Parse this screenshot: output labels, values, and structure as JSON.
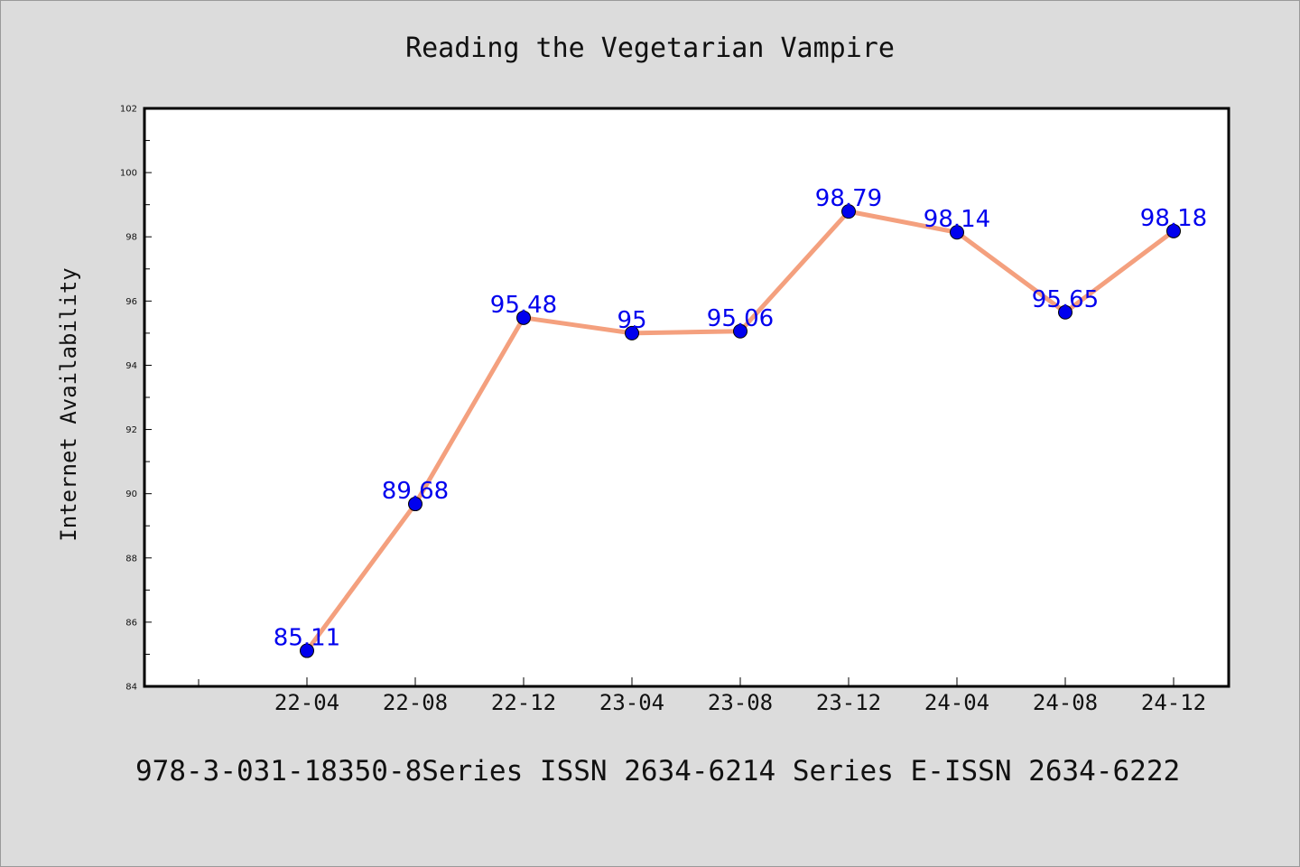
{
  "chart_data": {
    "type": "line",
    "title": "Reading the Vegetarian Vampire",
    "xlabel": "",
    "ylabel": "Internet Availability",
    "categories": [
      "22-04",
      "22-08",
      "22-12",
      "23-04",
      "23-08",
      "23-12",
      "24-04",
      "24-08",
      "24-12"
    ],
    "series": [
      {
        "values": [
          85.11,
          89.68,
          95.48,
          95,
          95.06,
          98.79,
          98.14,
          95.65,
          98.18
        ],
        "line_color": "#f4a07e",
        "marker_color": "#0000ee",
        "label_color": "#0000ee"
      }
    ],
    "ylim": [
      84,
      102
    ],
    "yticks": [
      84,
      86,
      88,
      90,
      92,
      94,
      96,
      98,
      100,
      102
    ],
    "grid": false,
    "legend": "none"
  },
  "caption": "978-3-031-18350-8Series ISSN 2634-6214 Series E-ISSN 2634-6222"
}
